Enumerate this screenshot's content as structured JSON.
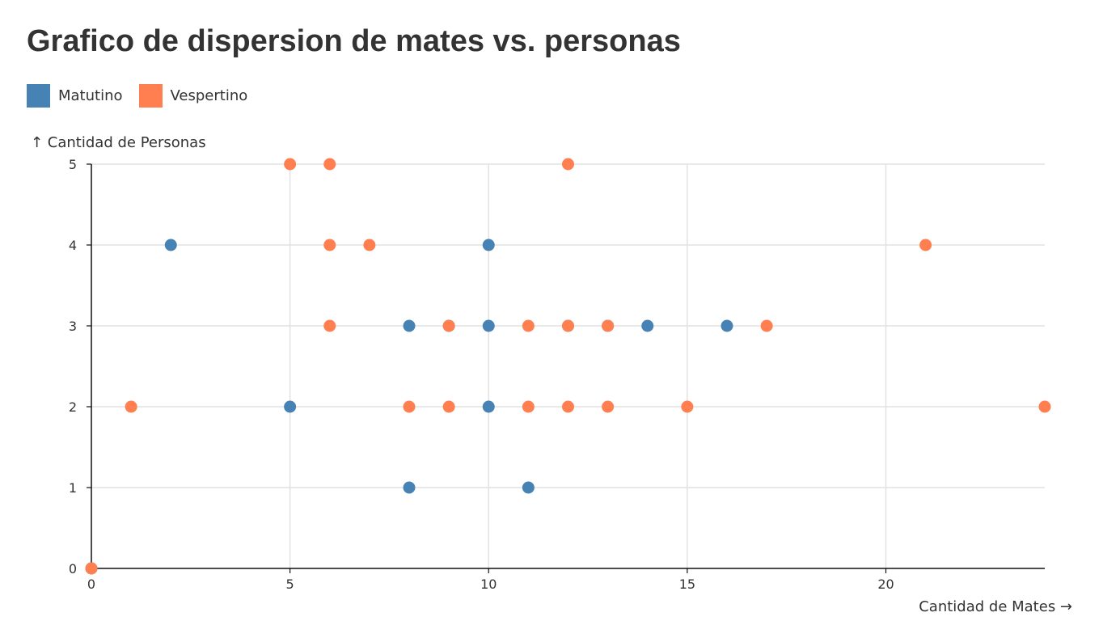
{
  "colors": {
    "Matutino": "#4682b4",
    "Vespertino": "#ff7f50"
  },
  "chart_data": {
    "type": "scatter",
    "title": "Grafico de dispersion de mates vs. personas",
    "xlabel": "Cantidad de Mates →",
    "ylabel": "↑ Cantidad de Personas",
    "xlim": [
      0,
      24
    ],
    "ylim": [
      0,
      5
    ],
    "xticks": [
      0,
      5,
      10,
      15,
      20
    ],
    "yticks": [
      0,
      1,
      2,
      3,
      4,
      5
    ],
    "grid": true,
    "legend_position": "top-left",
    "series": [
      {
        "name": "Matutino",
        "points": [
          [
            0,
            0
          ],
          [
            2,
            4
          ],
          [
            5,
            2
          ],
          [
            8,
            3
          ],
          [
            8,
            1
          ],
          [
            9,
            3
          ],
          [
            10,
            4
          ],
          [
            10,
            3
          ],
          [
            10,
            2
          ],
          [
            11,
            1
          ],
          [
            12,
            3
          ],
          [
            13,
            3
          ],
          [
            14,
            3
          ],
          [
            16,
            3
          ]
        ]
      },
      {
        "name": "Vespertino",
        "points": [
          [
            0,
            0
          ],
          [
            1,
            2
          ],
          [
            5,
            5
          ],
          [
            6,
            5
          ],
          [
            6,
            4
          ],
          [
            6,
            3
          ],
          [
            7,
            4
          ],
          [
            8,
            2
          ],
          [
            9,
            3
          ],
          [
            9,
            2
          ],
          [
            11,
            3
          ],
          [
            11,
            2
          ],
          [
            12,
            5
          ],
          [
            12,
            3
          ],
          [
            12,
            2
          ],
          [
            13,
            3
          ],
          [
            13,
            2
          ],
          [
            15,
            2
          ],
          [
            17,
            3
          ],
          [
            21,
            4
          ],
          [
            24,
            2
          ]
        ]
      }
    ]
  }
}
